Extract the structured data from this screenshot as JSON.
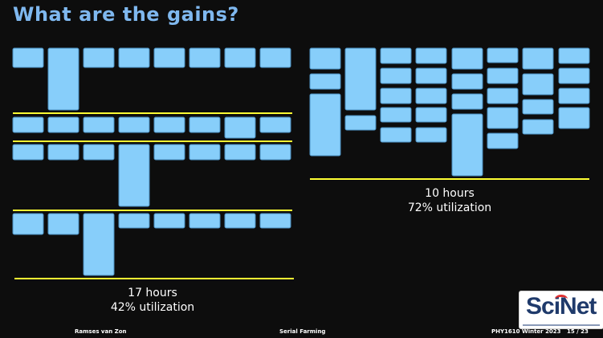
{
  "title": "What are the gains?",
  "colors": {
    "job_fill": "#87cefa",
    "job_stroke": "#4a8fc0",
    "line": "#ffff33",
    "title": "#7fb8ef"
  },
  "left_schedule": {
    "duration": "17 hours",
    "utilization": "42% utilization"
  },
  "right_schedule": {
    "duration": "10 hours",
    "utilization": "72% utilization"
  },
  "footer": {
    "author": "Ramses van Zon",
    "topic": "Serial Farming",
    "course": "PHY1610 Winter 2023",
    "page": "15 / 23"
  },
  "logo": {
    "text": "SciNet",
    "icon": "scinet-logo"
  }
}
